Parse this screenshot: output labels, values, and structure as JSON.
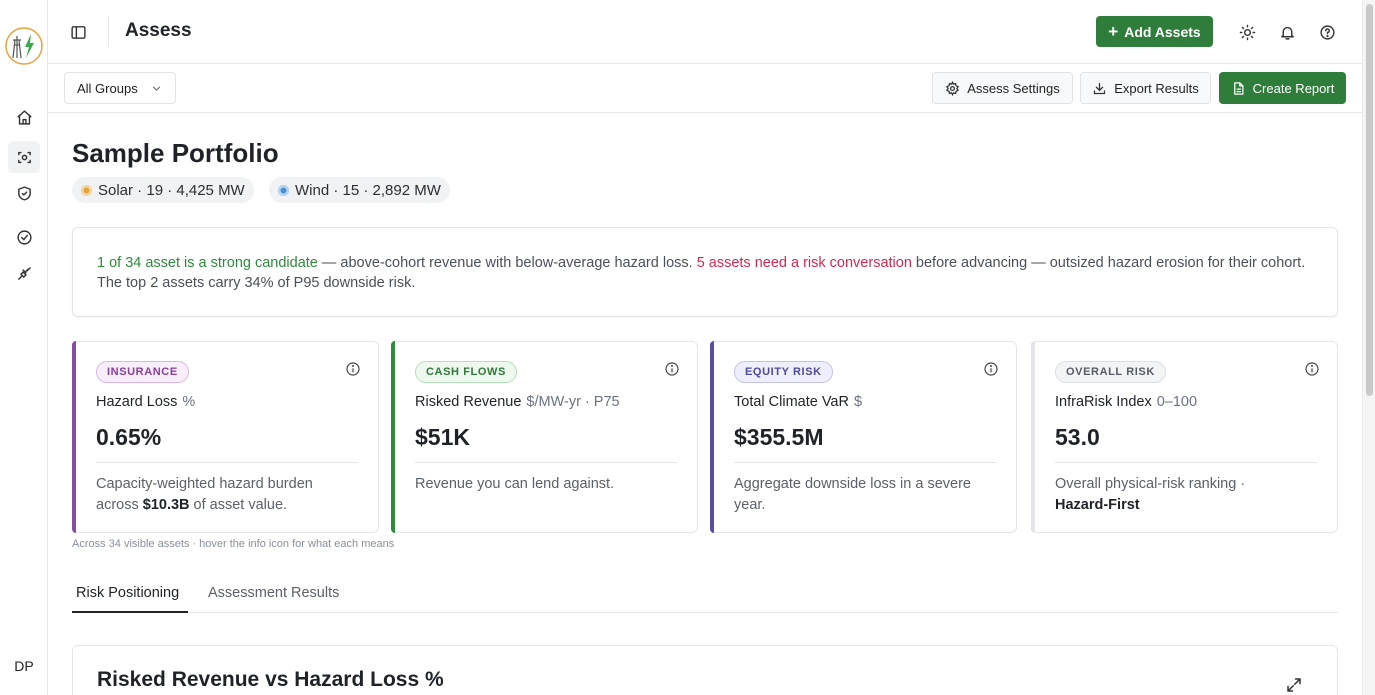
{
  "app": {
    "page_title": "Assess",
    "user_initials": "DP"
  },
  "topbar": {
    "add_assets_label": "Add Assets",
    "icons": [
      "sidebar-toggle-icon",
      "sun-icon",
      "bell-icon",
      "help-icon"
    ]
  },
  "rail": {
    "items": [
      "home-icon",
      "assess-scan-icon",
      "shield-icon",
      "check-circle-icon",
      "plug-icon"
    ],
    "active_index": 1
  },
  "subbar": {
    "group_select_value": "All Groups",
    "assess_settings_label": "Assess Settings",
    "export_results_label": "Export Results",
    "create_report_label": "Create Report"
  },
  "portfolio": {
    "title": "Sample Portfolio",
    "chips": [
      {
        "label": "Solar · 19 · 4,425 MW",
        "color": "#e0a53a"
      },
      {
        "label": "Wind · 15 · 2,892 MW",
        "color": "#4a8fd4"
      }
    ]
  },
  "summary": {
    "strong_candidate": "1 of 34 asset is a strong candidate",
    "text_1": " — above-cohort revenue with below-average hazard loss. ",
    "risk_conversation": "5 assets need a risk conversation",
    "text_2": " before advancing — outsized hazard erosion for their cohort. The top 2 assets carry 34% of P95 downside risk."
  },
  "cards": [
    {
      "badge": "INSURANCE",
      "label": "Hazard Loss",
      "unit": "%",
      "value": "0.65%",
      "desc_1": "Capacity-weighted hazard burden across ",
      "desc_bold": "$10.3B",
      "desc_2": " of asset value.",
      "accent": "#8a4aa6"
    },
    {
      "badge": "CASH FLOWS",
      "label": "Risked Revenue",
      "unit": "$/MW-yr · P75",
      "value": "$51K",
      "desc_1": "Revenue you can lend against.",
      "desc_bold": "",
      "desc_2": "",
      "accent": "#2f8a3d"
    },
    {
      "badge": "EQUITY RISK",
      "label": "Total Climate VaR",
      "unit": "$",
      "value": "$355.5M",
      "desc_1": "Aggregate downside loss in a severe year.",
      "desc_bold": "",
      "desc_2": "",
      "accent": "#5a4fa8"
    },
    {
      "badge": "OVERALL RISK",
      "label": "InfraRisk Index",
      "unit": "0–100",
      "value": "53.0",
      "desc_1": "Overall physical-risk ranking · ",
      "desc_bold": "Hazard-First",
      "desc_2": "",
      "accent": "#e3e5e8"
    }
  ],
  "footnote": "Across 34 visible assets · hover the info icon for what each means",
  "tabs": [
    {
      "label": "Risk Positioning",
      "active": true
    },
    {
      "label": "Assessment Results",
      "active": false
    }
  ],
  "chart_section": {
    "title": "Risked Revenue vs Hazard Loss %"
  }
}
